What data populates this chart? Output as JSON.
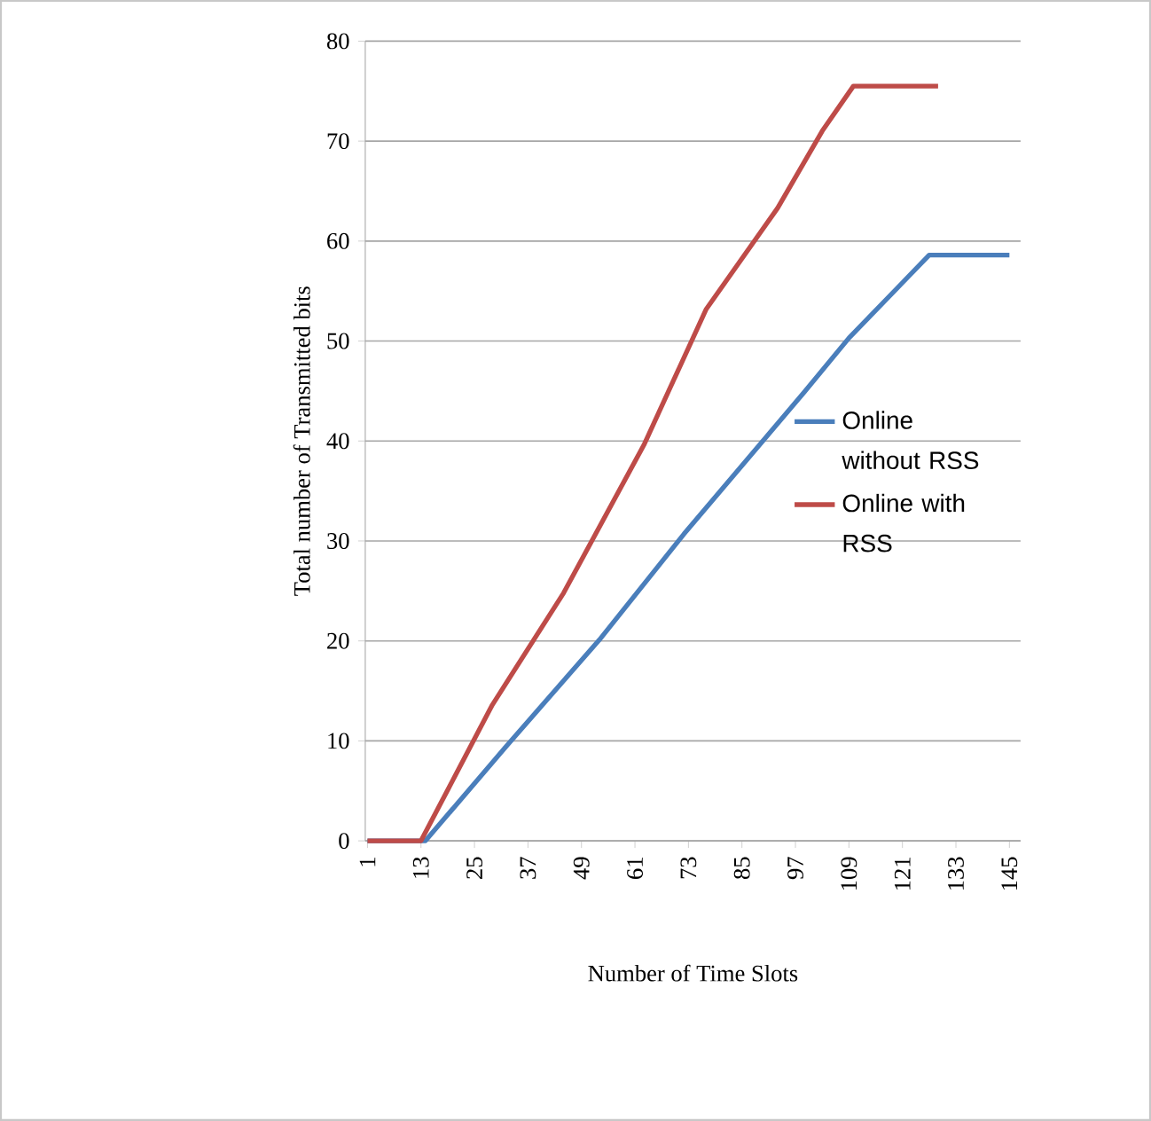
{
  "chart_data": {
    "type": "line",
    "xlabel": "Number of Time Slots",
    "ylabel": "Total number of Transmitted bits",
    "xlim": [
      0.5,
      147.5
    ],
    "xticks": [
      1,
      13,
      25,
      37,
      49,
      61,
      73,
      85,
      97,
      109,
      121,
      133,
      145
    ],
    "ylim": [
      0,
      80
    ],
    "yticks": [
      0,
      10,
      20,
      30,
      40,
      50,
      60,
      70,
      80
    ],
    "grid": "y",
    "legend": "right",
    "line_style": "solid",
    "marker": "none",
    "series": [
      {
        "name": "Online without RSS",
        "color": "#4a7ebb",
        "x": [
          1,
          14,
          32,
          53,
          72,
          99,
          109,
          127,
          145
        ],
        "values": [
          0,
          0,
          9.4,
          20.1,
          30.7,
          44.9,
          50.3,
          58.6,
          58.6
        ]
      },
      {
        "name": "Online with RSS",
        "color": "#be4b48",
        "x": [
          1,
          13,
          29,
          45,
          63,
          77,
          93,
          103,
          110,
          129
        ],
        "values": [
          0,
          0,
          13.6,
          24.8,
          39.6,
          53.2,
          63.3,
          71,
          75.5,
          75.5
        ]
      }
    ]
  }
}
